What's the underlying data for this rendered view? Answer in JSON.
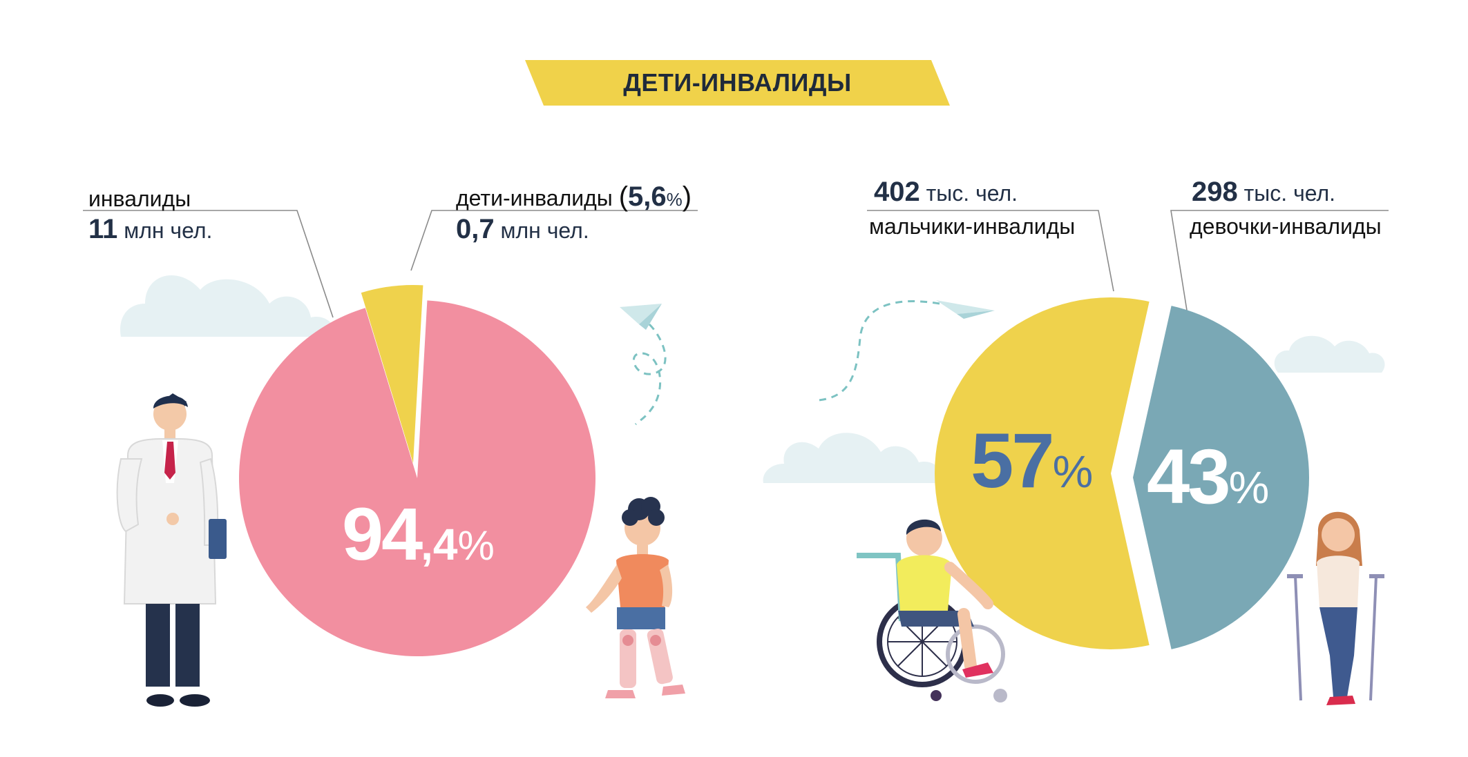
{
  "title": "ДЕТИ-ИНВАЛИДЫ",
  "colors": {
    "banner": "#f0d24a",
    "adults": "#f28fa0",
    "children": "#efd24c",
    "boys": "#efd24c",
    "girls": "#7aa8b5",
    "dark_text": "#223046",
    "boys_pct_text": "#4a6fa3",
    "cloud": "#e6f1f3",
    "leader_line": "#8a8a8a"
  },
  "left": {
    "adults_label": "инвалиды",
    "adults_value": "11",
    "adults_unit": "млн чел.",
    "children_label": "дети-инвалиды",
    "children_share_open": "(",
    "children_share": "5,6",
    "children_share_pct": "%",
    "children_share_close": ")",
    "children_value": "0,7",
    "children_unit": "млн чел.",
    "big_pct_int": "94",
    "big_pct_frac": ",4",
    "big_pct_sign": "%"
  },
  "right": {
    "boys_value": "402",
    "boys_unit": "тыс. чел.",
    "boys_label": "мальчики-инвалиды",
    "girls_value": "298",
    "girls_unit": "тыс. чел.",
    "girls_label": "девочки-инвалиды",
    "boys_pct": "57",
    "boys_pct_sign": "%",
    "girls_pct": "43",
    "girls_pct_sign": "%"
  },
  "chart_data": [
    {
      "type": "pie",
      "title": "",
      "categories": [
        "инвалиды",
        "дети-инвалиды"
      ],
      "values": [
        94.4,
        5.6
      ],
      "absolute": [
        "11 млн чел.",
        "0,7 млн чел."
      ]
    },
    {
      "type": "pie",
      "title": "",
      "categories": [
        "мальчики-инвалиды",
        "девочки-инвалиды"
      ],
      "values": [
        57,
        43
      ],
      "absolute": [
        "402 тыс. чел.",
        "298 тыс. чел."
      ]
    }
  ]
}
